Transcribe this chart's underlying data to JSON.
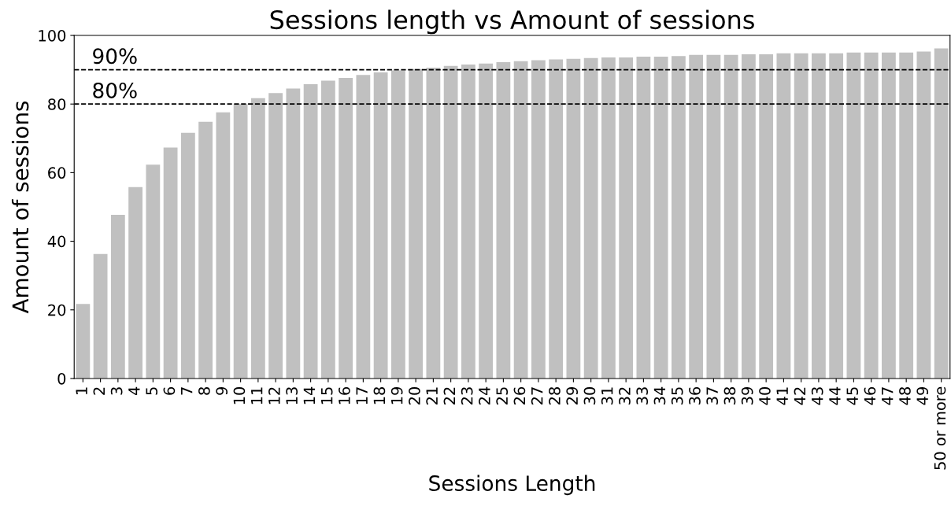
{
  "chart_data": {
    "type": "bar",
    "title": "Sessions length vs Amount of sessions",
    "xlabel": "Sessions Length",
    "ylabel": "Amount of sessions",
    "categories": [
      "1",
      "2",
      "3",
      "4",
      "5",
      "6",
      "7",
      "8",
      "9",
      "10",
      "11",
      "12",
      "13",
      "14",
      "15",
      "16",
      "17",
      "18",
      "19",
      "20",
      "21",
      "22",
      "23",
      "24",
      "25",
      "26",
      "27",
      "28",
      "29",
      "30",
      "31",
      "32",
      "33",
      "34",
      "35",
      "36",
      "37",
      "38",
      "39",
      "40",
      "41",
      "42",
      "43",
      "44",
      "45",
      "46",
      "47",
      "48",
      "49",
      "50 or more"
    ],
    "values": [
      21.7,
      36.3,
      47.7,
      55.8,
      62.3,
      67.3,
      71.6,
      74.8,
      77.6,
      80.0,
      81.7,
      83.2,
      84.5,
      85.8,
      86.8,
      87.6,
      88.5,
      89.2,
      89.8,
      90.2,
      90.6,
      91.1,
      91.5,
      91.8,
      92.2,
      92.5,
      92.8,
      93.0,
      93.2,
      93.4,
      93.6,
      93.6,
      93.8,
      93.8,
      94.0,
      94.3,
      94.3,
      94.3,
      94.5,
      94.5,
      94.8,
      94.8,
      94.8,
      94.8,
      95.0,
      95.0,
      95.0,
      95.0,
      95.3,
      96.2
    ],
    "color": "#c0c0c0",
    "ylim": [
      0,
      100
    ],
    "yticks": [
      0,
      20,
      40,
      60,
      80,
      100
    ],
    "ref_lines": [
      {
        "axis": "y",
        "value": 90,
        "label": "90%",
        "color": "#000000",
        "line_style": "dashed"
      },
      {
        "axis": "y",
        "value": 80,
        "label": "80%",
        "color": "#000000",
        "line_style": "dashed"
      }
    ],
    "grid": false,
    "legend": false
  }
}
